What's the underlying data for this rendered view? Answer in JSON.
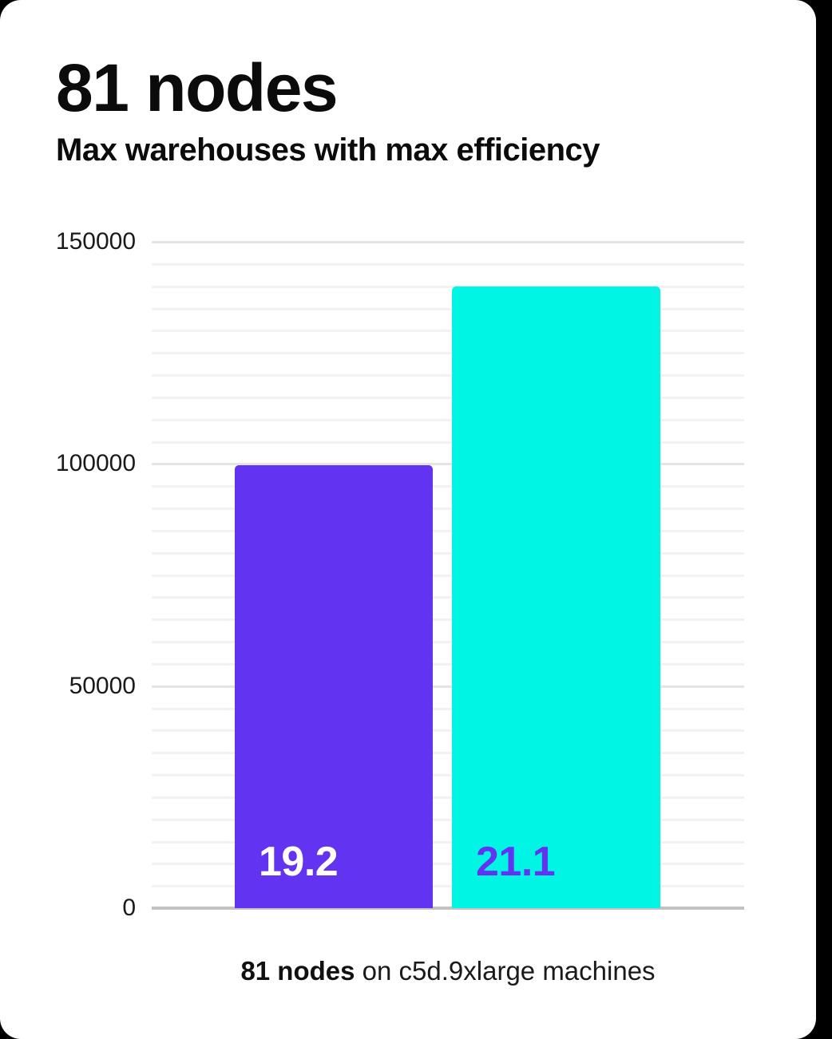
{
  "card": {
    "title": "81 nodes",
    "subtitle": "Max warehouses with max efficiency",
    "caption": {
      "bold": "81 nodes",
      "rest": " on c5d.9xlarge machines"
    }
  },
  "colors": {
    "background": "#000000",
    "card": "#ffffff",
    "bar_purple": "#6333f2",
    "bar_cyan": "#00f5e4",
    "grid_minor": "#f2f2f2",
    "grid_major": "#e4e4e4",
    "axis": "#c2c2c2",
    "text": "#111111"
  },
  "chart_data": {
    "type": "bar",
    "title": "81 nodes",
    "subtitle": "Max warehouses with max efficiency",
    "caption": "81 nodes on c5d.9xlarge machines",
    "categories": [
      "19.2",
      "21.1"
    ],
    "bars": [
      {
        "label": "19.2",
        "value": 99700,
        "color": "#6333f2",
        "label_color": "#ffffff"
      },
      {
        "label": "21.1",
        "value": 140000,
        "color": "#00f5e4",
        "label_color": "#6333f2"
      }
    ],
    "xlabel": "",
    "ylabel": "",
    "ylim": [
      0,
      150000
    ],
    "yticks": [
      0,
      50000,
      100000,
      150000
    ],
    "minor_grid_step": 5000,
    "grid": true,
    "legend": false
  }
}
